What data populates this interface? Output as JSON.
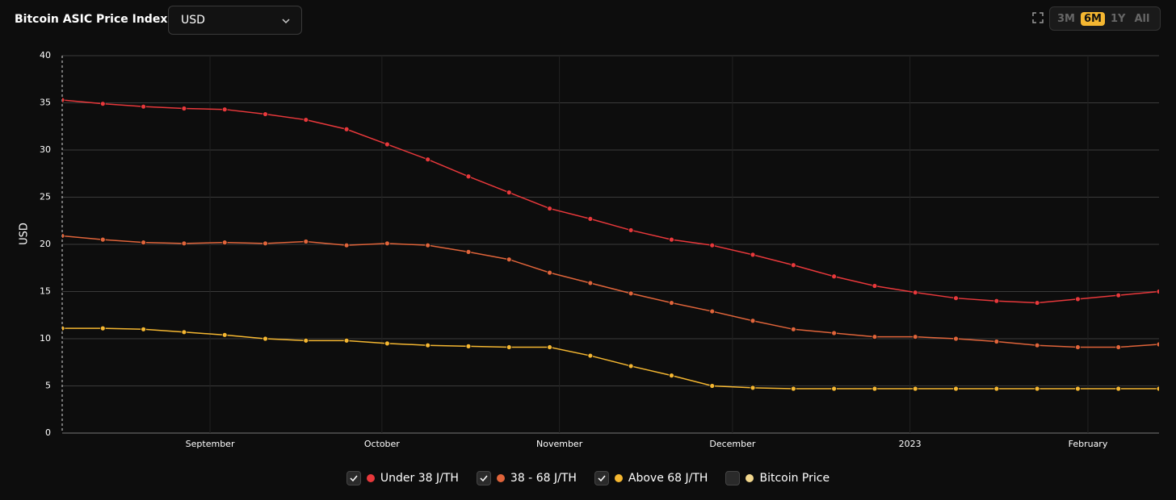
{
  "header": {
    "title": "Bitcoin ASIC Price Index",
    "currency": "USD",
    "ranges": [
      "3M",
      "6M",
      "1Y",
      "All"
    ],
    "active_range_index": 1
  },
  "chart_data": {
    "type": "line",
    "ylabel": "USD",
    "categories": [
      null,
      null,
      null,
      null,
      null,
      null,
      null,
      null,
      null,
      null,
      null,
      null,
      null,
      null,
      null,
      null,
      null,
      null,
      null,
      null,
      null,
      null,
      null,
      null,
      null,
      null,
      null,
      null
    ],
    "xticks": [
      {
        "value": 3.64,
        "label": "September"
      },
      {
        "value": 7.87,
        "label": "October"
      },
      {
        "value": 12.24,
        "label": "November"
      },
      {
        "value": 16.5,
        "label": "December"
      },
      {
        "value": 20.87,
        "label": "2023"
      },
      {
        "value": 25.25,
        "label": "February"
      }
    ],
    "ylim": [
      0,
      40
    ],
    "yticks": [
      0,
      5,
      10,
      15,
      20,
      25,
      30,
      35,
      40
    ],
    "grid": true,
    "series": [
      {
        "name": "Under 38 J/TH",
        "color": "#e8383b",
        "checked": true,
        "values": [
          35.3,
          34.9,
          34.6,
          34.4,
          34.3,
          33.8,
          33.2,
          32.2,
          30.6,
          29.0,
          27.2,
          25.5,
          23.8,
          22.7,
          21.5,
          20.5,
          19.9,
          18.9,
          17.8,
          16.6,
          15.6,
          14.9,
          14.3,
          14.0,
          13.8,
          14.2,
          14.6,
          15.0
        ]
      },
      {
        "name": "38 - 68 J/TH",
        "color": "#e0643a",
        "checked": true,
        "values": [
          20.9,
          20.5,
          20.2,
          20.1,
          20.2,
          20.1,
          20.3,
          19.9,
          20.1,
          19.9,
          19.2,
          18.4,
          17.0,
          15.9,
          14.8,
          13.8,
          12.9,
          11.9,
          11.0,
          10.6,
          10.2,
          10.2,
          10.0,
          9.7,
          9.3,
          9.1,
          9.1,
          9.4
        ]
      },
      {
        "name": "Above 68 J/TH",
        "color": "#f5b731",
        "checked": true,
        "values": [
          11.1,
          11.1,
          11.0,
          10.7,
          10.4,
          10.0,
          9.8,
          9.8,
          9.5,
          9.3,
          9.2,
          9.1,
          9.1,
          8.2,
          7.1,
          6.1,
          5.0,
          4.8,
          4.7,
          4.7,
          4.7,
          4.7,
          4.7,
          4.7,
          4.7,
          4.7,
          4.7,
          4.7
        ]
      }
    ],
    "hidden_series": [
      {
        "name": "Bitcoin Price",
        "color": "#f3d88e",
        "checked": false
      }
    ]
  }
}
